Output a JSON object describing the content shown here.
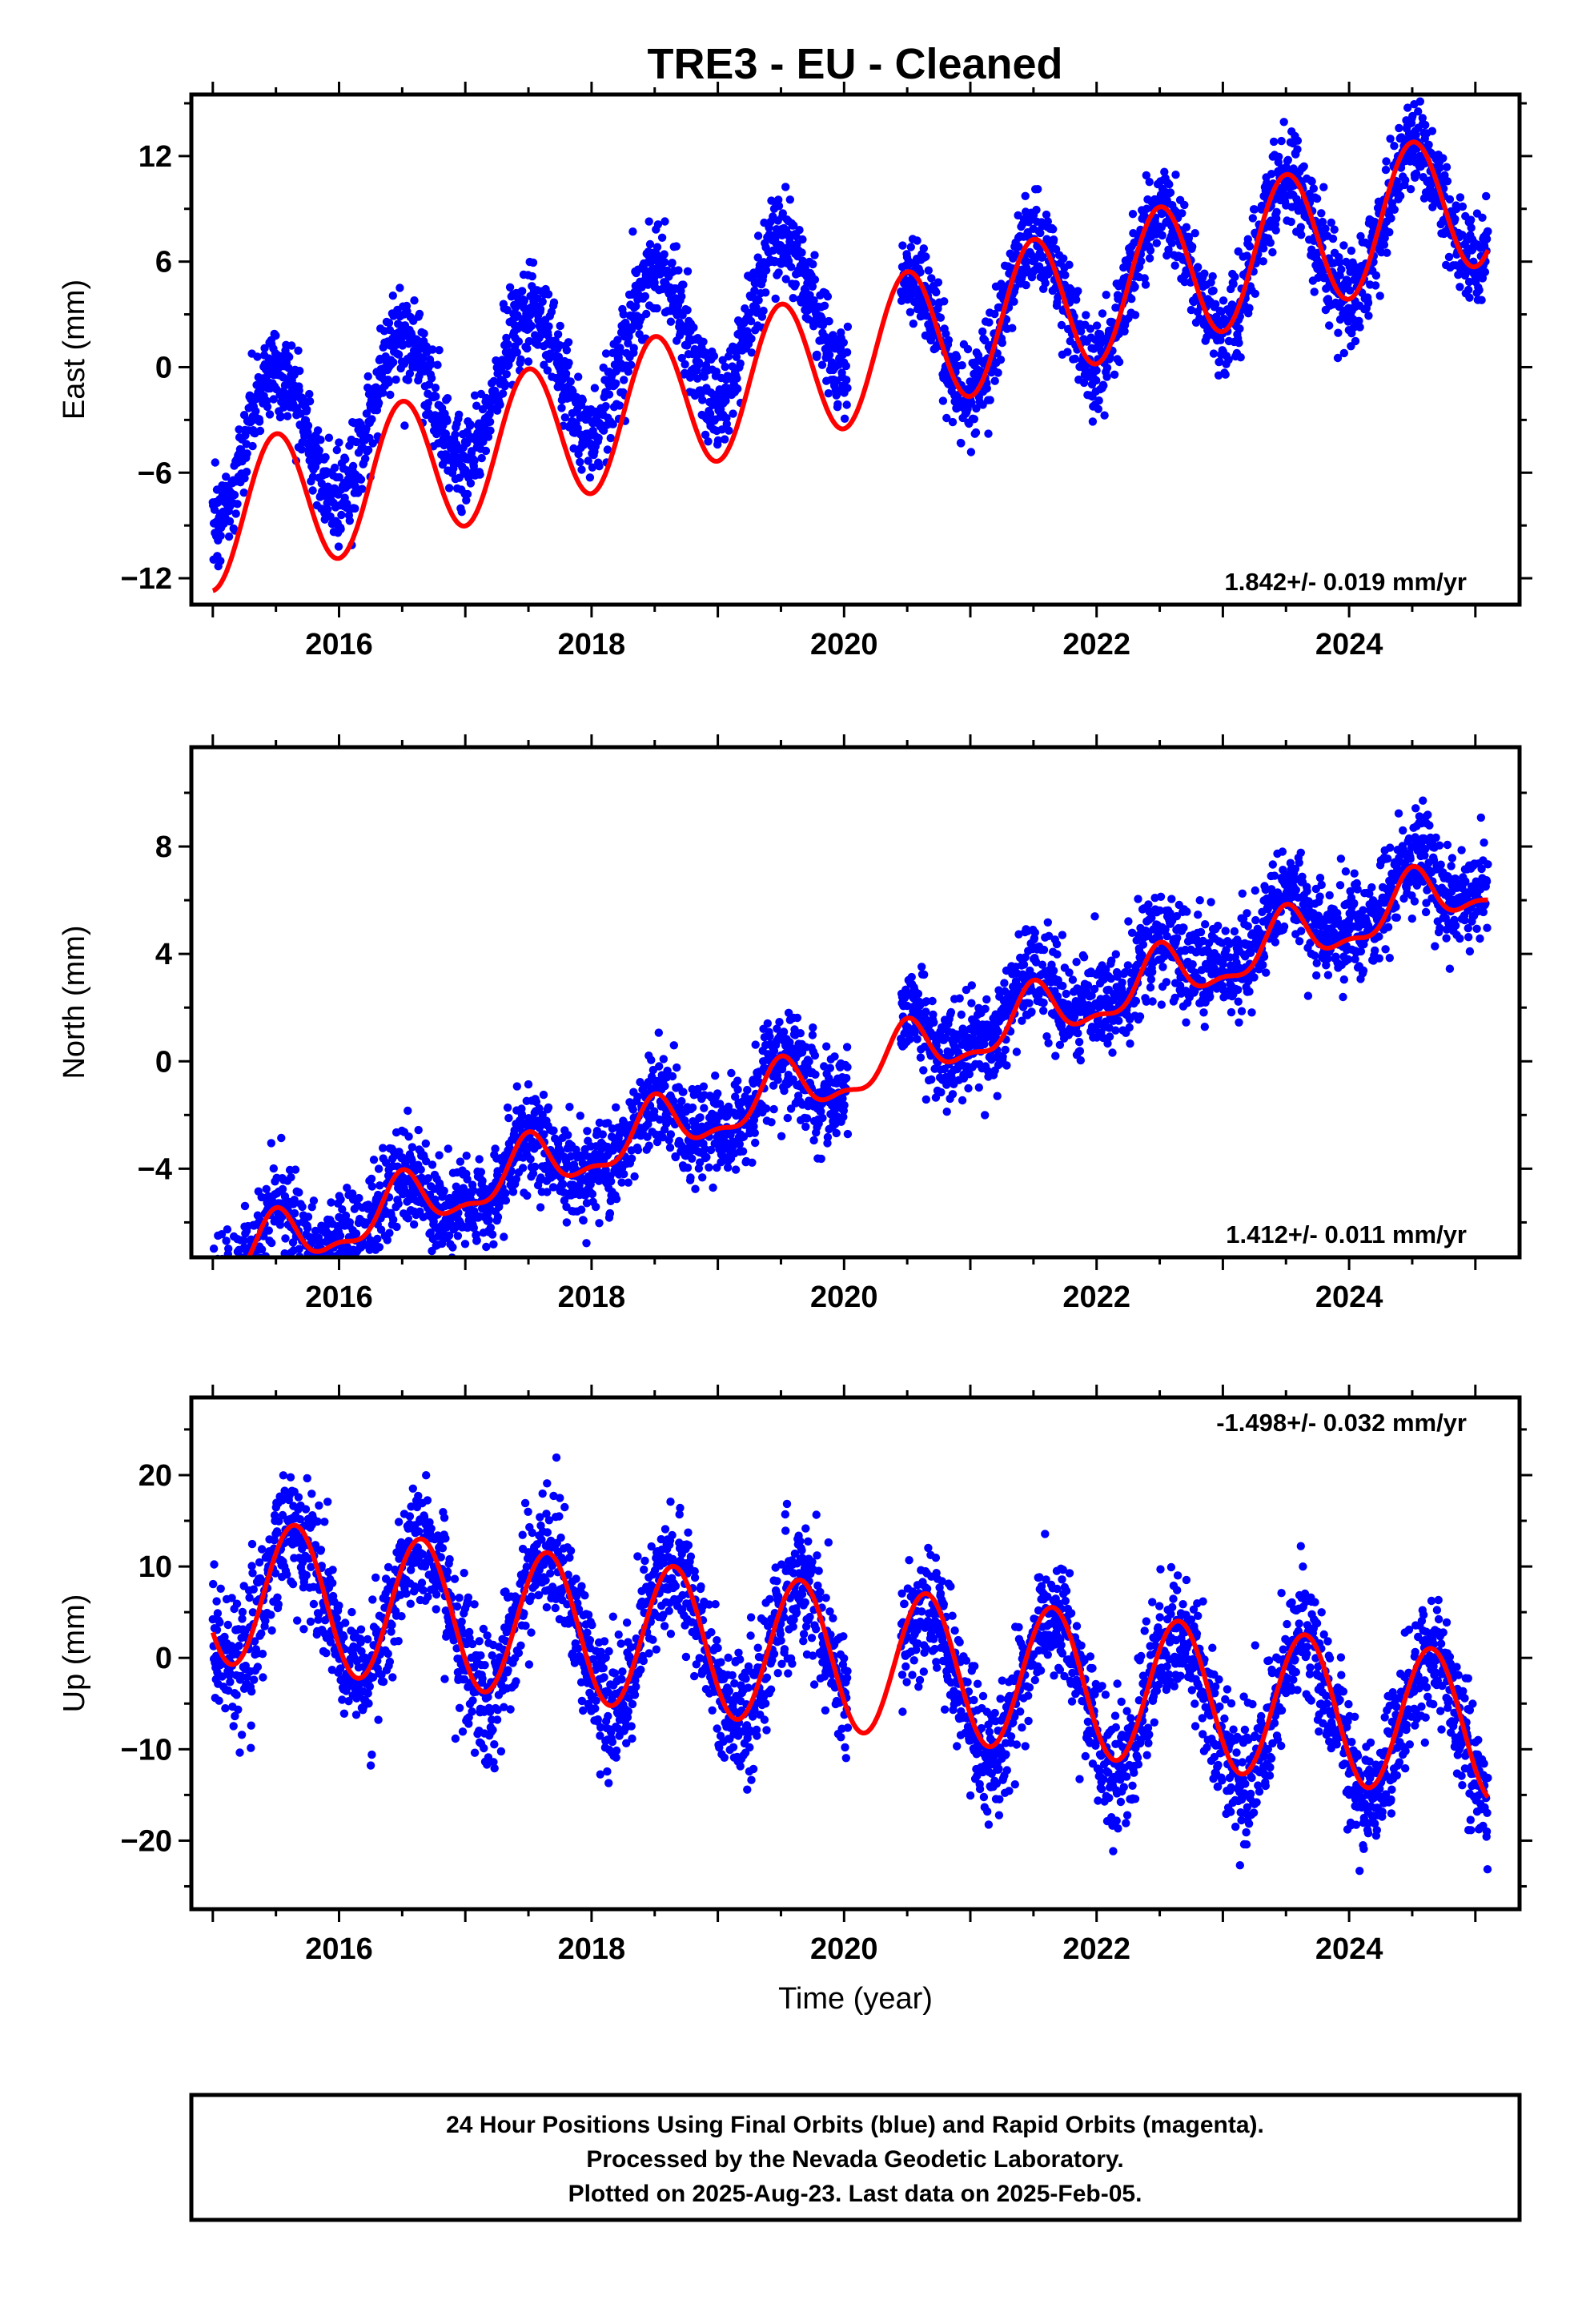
{
  "title": "TRE3  - EU - Cleaned",
  "footer": {
    "lines": [
      "24 Hour Positions Using Final Orbits (blue) and Rapid Orbits (magenta).",
      "Processed by the Nevada Geodetic Laboratory.",
      "Plotted on 2025-Aug-23. Last data on 2025-Feb-05."
    ]
  },
  "colors": {
    "observations": "#0000ff",
    "model": "#ff0000",
    "rapid_orbits": "#ff00ff"
  },
  "chart_data": [
    {
      "type": "scatter",
      "panel": "east",
      "ylabel": "East (mm)",
      "xlabel": "",
      "rate": "1.842+/- 0.019 mm/yr",
      "rate_position": "bottom-right",
      "xlim": [
        2014.83,
        2025.35
      ],
      "ylim": [
        -13.5,
        15.5
      ],
      "xticks": [
        2016,
        2018,
        2020,
        2022,
        2024
      ],
      "yticks": [
        -12,
        -6,
        0,
        6,
        12
      ],
      "gaps": [
        [
          2020.03,
          2020.45
        ]
      ],
      "segments": [
        {
          "start": 2015.0,
          "end": 2020.03,
          "offset": 3.6
        },
        {
          "start": 2020.45,
          "end": 2025.1,
          "offset": 0.0
        }
      ],
      "model": {
        "ref_year": 2020.0,
        "intercept": 0.5,
        "rate": 1.842,
        "amp": 4.0,
        "peak": 0.5,
        "amp2": 0.0,
        "peak2": 0.0,
        "break_year": 2020.5,
        "break_step": 0.0
      },
      "scatter_sd": 1.3,
      "series": [
        {
          "name": "24 Hour Positions (Final Orbits)",
          "kind": "scatter"
        },
        {
          "name": "Model",
          "kind": "line"
        }
      ]
    },
    {
      "type": "scatter",
      "panel": "north",
      "ylabel": "North (mm)",
      "xlabel": "",
      "rate": "1.412+/- 0.011 mm/yr",
      "rate_position": "bottom-right",
      "xlim": [
        2014.83,
        2025.35
      ],
      "ylim": [
        -7.3,
        11.7
      ],
      "xticks": [
        2016,
        2018,
        2020,
        2022,
        2024
      ],
      "yticks": [
        -4,
        0,
        4,
        8
      ],
      "gaps": [
        [
          2020.03,
          2020.45
        ]
      ],
      "segments": [
        {
          "start": 2015.0,
          "end": 2020.03,
          "offset": 0.0
        },
        {
          "start": 2020.45,
          "end": 2025.1,
          "offset": 0.4
        }
      ],
      "model": {
        "ref_year": 2020.0,
        "intercept": -0.5,
        "rate": 1.412,
        "amp": 1.0,
        "peak": 0.5,
        "amp2": 0.4,
        "peak2": 0.0,
        "break_year": 2020.3,
        "break_step": 0.0
      },
      "scatter_sd": 0.9,
      "series": [
        {
          "name": "24 Hour Positions (Final Orbits)",
          "kind": "scatter"
        },
        {
          "name": "Model",
          "kind": "line"
        }
      ]
    },
    {
      "type": "scatter",
      "panel": "up",
      "ylabel": "Up (mm)",
      "xlabel": "Time (year)",
      "rate": "-1.498+/- 0.032 mm/yr",
      "rate_position": "top-right",
      "xlim": [
        2014.83,
        2025.35
      ],
      "ylim": [
        -27.5,
        28.5
      ],
      "xticks": [
        2016,
        2018,
        2020,
        2022,
        2024
      ],
      "yticks": [
        -20,
        -10,
        0,
        10,
        20
      ],
      "gaps": [
        [
          2020.03,
          2020.45
        ]
      ],
      "segments": [
        {
          "start": 2015.0,
          "end": 2020.03,
          "offset": 0.0
        },
        {
          "start": 2020.45,
          "end": 2025.1,
          "offset": -1.0
        }
      ],
      "model": {
        "ref_year": 2020.0,
        "intercept": 0.0,
        "rate": -1.498,
        "amp": 8.0,
        "peak": 0.65,
        "amp2": 0.0,
        "peak2": 0.0,
        "break_year": 2020.3,
        "break_step": 0.0
      },
      "scatter_sd": 3.5,
      "series": [
        {
          "name": "24 Hour Positions (Final Orbits)",
          "kind": "scatter"
        },
        {
          "name": "Model",
          "kind": "line"
        }
      ]
    }
  ]
}
